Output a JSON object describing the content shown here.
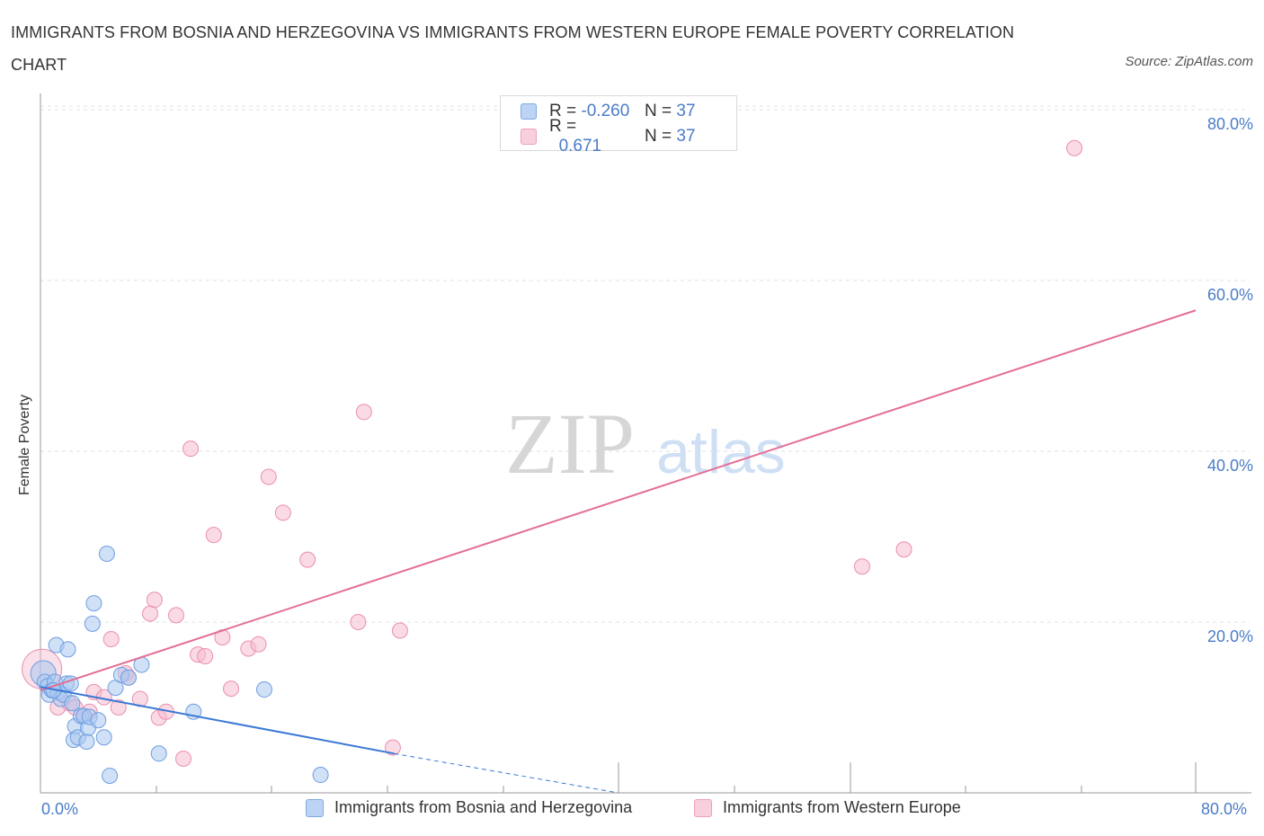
{
  "header": {
    "title": "IMMIGRANTS FROM BOSNIA AND HERZEGOVINA VS IMMIGRANTS FROM WESTERN EUROPE FEMALE POVERTY CORRELATION CHART",
    "source": "Source: ZipAtlas.com"
  },
  "watermark": {
    "zip": "ZIP",
    "atlas": "atlas"
  },
  "legend": {
    "series1": {
      "r_label": "R =",
      "r_value": "-0.260",
      "n_label": "N =",
      "n_value": "37"
    },
    "series2": {
      "r_label": "R =",
      "r_value": "0.671",
      "n_label": "N =",
      "n_value": "37"
    }
  },
  "colors": {
    "blue_fill": "#aac8f0",
    "blue_stroke": "#6e9ee0",
    "blue_line": "#3a78d4",
    "pink_fill": "#f5bccf",
    "pink_stroke": "#eb8faf",
    "pink_line": "#e46e96",
    "tick_text": "#4a7cc9",
    "grid": "#e0e0e0"
  },
  "chart_data": {
    "type": "scatter",
    "title": "IMMIGRANTS FROM BOSNIA AND HERZEGOVINA VS IMMIGRANTS FROM WESTERN EUROPE FEMALE POVERTY CORRELATION CHART",
    "xlabel": "",
    "ylabel": "Female Poverty",
    "xlim": [
      0,
      80
    ],
    "ylim": [
      0,
      80
    ],
    "x_ticks": [
      "0.0%",
      "80.0%"
    ],
    "y_ticks": [
      {
        "value": 20,
        "label": "20.0%"
      },
      {
        "value": 40,
        "label": "40.0%"
      },
      {
        "value": 60,
        "label": "60.0%"
      },
      {
        "value": 80,
        "label": "80.0%"
      }
    ],
    "grid": true,
    "legend_position": "top-center",
    "series": [
      {
        "name": "Immigrants from Bosnia and Herzegovina",
        "r": -0.26,
        "n": 37,
        "points": [
          [
            0.2,
            14.0
          ],
          [
            0.3,
            13.0
          ],
          [
            0.5,
            12.5
          ],
          [
            0.6,
            11.5
          ],
          [
            0.8,
            12.0
          ],
          [
            1.0,
            13.0
          ],
          [
            1.1,
            17.3
          ],
          [
            1.2,
            11.8
          ],
          [
            1.4,
            11.0
          ],
          [
            1.6,
            11.5
          ],
          [
            1.8,
            12.8
          ],
          [
            1.9,
            16.8
          ],
          [
            2.1,
            12.8
          ],
          [
            2.3,
            6.2
          ],
          [
            2.4,
            7.8
          ],
          [
            2.6,
            6.5
          ],
          [
            2.8,
            9.0
          ],
          [
            3.0,
            9.0
          ],
          [
            3.2,
            6.0
          ],
          [
            3.3,
            7.6
          ],
          [
            3.4,
            8.9
          ],
          [
            3.6,
            19.8
          ],
          [
            3.7,
            22.2
          ],
          [
            4.0,
            8.5
          ],
          [
            4.4,
            6.5
          ],
          [
            4.6,
            28.0
          ],
          [
            4.8,
            2.0
          ],
          [
            5.2,
            12.3
          ],
          [
            5.6,
            13.8
          ],
          [
            6.1,
            13.5
          ],
          [
            7.0,
            15.0
          ],
          [
            8.2,
            4.6
          ],
          [
            10.6,
            9.5
          ],
          [
            15.5,
            12.1
          ],
          [
            19.4,
            2.1
          ],
          [
            0.9,
            12.0
          ],
          [
            2.2,
            10.5
          ]
        ],
        "trend": {
          "x0": 0,
          "y0": 12.4,
          "x_solid_end": 24.5,
          "y_solid_end": 4.6,
          "x1": 40,
          "y1": 0
        }
      },
      {
        "name": "Immigrants from Western Europe",
        "r": 0.671,
        "n": 37,
        "points": [
          [
            0.1,
            14.5
          ],
          [
            1.2,
            10.0
          ],
          [
            2.0,
            10.5
          ],
          [
            2.4,
            10.0
          ],
          [
            3.0,
            9.0
          ],
          [
            3.4,
            9.5
          ],
          [
            3.7,
            11.8
          ],
          [
            4.4,
            11.2
          ],
          [
            4.9,
            18.0
          ],
          [
            5.4,
            10.0
          ],
          [
            5.9,
            14.0
          ],
          [
            6.1,
            13.5
          ],
          [
            6.9,
            11.0
          ],
          [
            7.6,
            21.0
          ],
          [
            7.9,
            22.6
          ],
          [
            8.2,
            8.8
          ],
          [
            8.7,
            9.5
          ],
          [
            9.4,
            20.8
          ],
          [
            9.9,
            4.0
          ],
          [
            10.4,
            40.3
          ],
          [
            10.9,
            16.2
          ],
          [
            11.4,
            16.0
          ],
          [
            12.0,
            30.2
          ],
          [
            12.6,
            18.2
          ],
          [
            14.4,
            16.9
          ],
          [
            15.1,
            17.4
          ],
          [
            15.8,
            37.0
          ],
          [
            16.8,
            32.8
          ],
          [
            18.5,
            27.3
          ],
          [
            22.0,
            20.0
          ],
          [
            22.4,
            44.6
          ],
          [
            24.4,
            5.3
          ],
          [
            24.9,
            19.0
          ],
          [
            56.9,
            26.5
          ],
          [
            59.8,
            28.5
          ],
          [
            71.6,
            75.5
          ],
          [
            13.2,
            12.2
          ]
        ],
        "trend": {
          "x0": 0,
          "y0": 12.0,
          "x1": 80,
          "y1": 56.5
        }
      }
    ]
  },
  "bottom_legend": {
    "item1": "Immigrants from Bosnia and Herzegovina",
    "item2": "Immigrants from Western Europe"
  }
}
